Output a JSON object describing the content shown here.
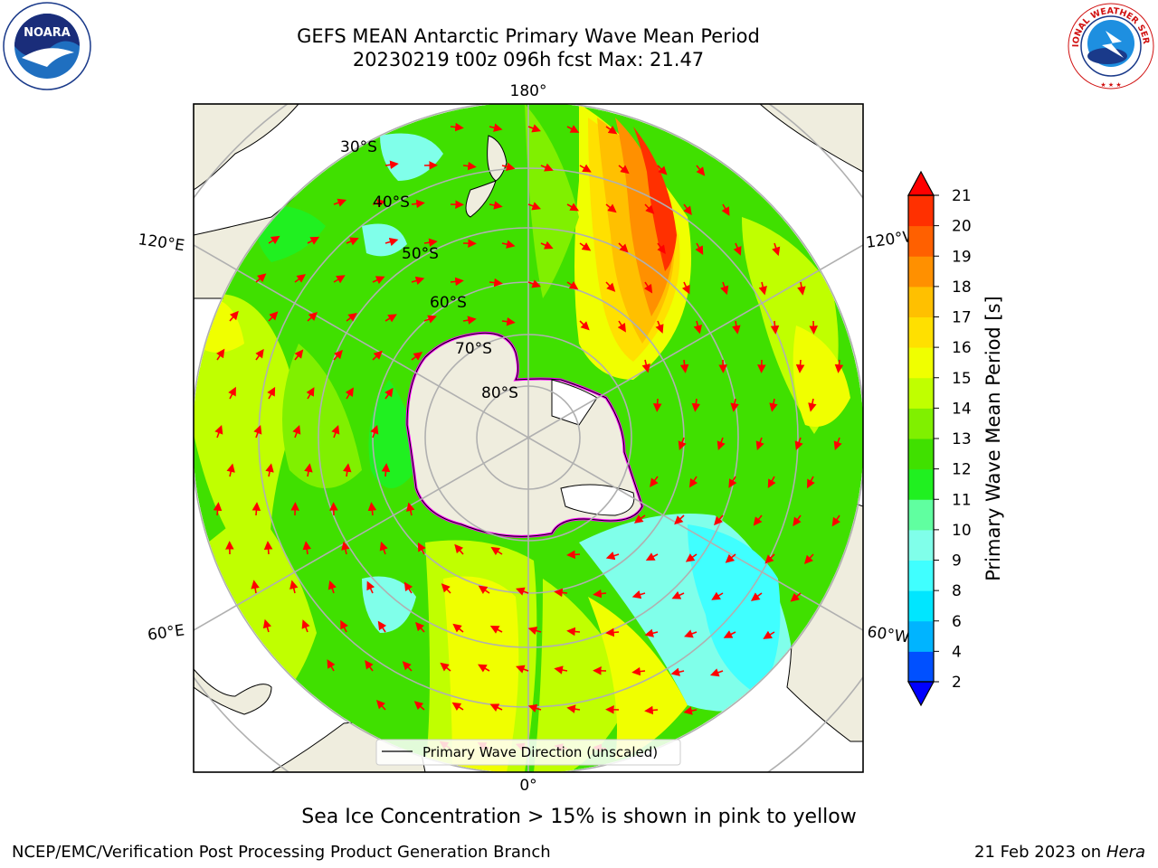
{
  "header": {
    "title_line1": "GEFS MEAN Antarctic Primary Wave Mean Period",
    "title_line2": "20230219 t00z 096h fcst   Max: 21.47"
  },
  "logos": {
    "left": {
      "name": "NOARA",
      "ring_text": "NATIONAL OCEANIC AND ATMOSPHERIC ADMINISTRATION · U.S. DEPARTMENT OF COMMERCE"
    },
    "right": {
      "ring_text": "NATIONAL WEATHER SERVICE"
    }
  },
  "map": {
    "projection": "south-polar-stereographic",
    "lon_labels": {
      "top": "180°",
      "bottom": "0°",
      "left_upper": "120°E",
      "left_lower": "60°E",
      "right_upper": "120°W",
      "right_lower": "60°W"
    },
    "lat_labels": [
      "30°S",
      "40°S",
      "50°S",
      "60°S",
      "70°S",
      "80°S"
    ],
    "legend": "Primary Wave Direction (unscaled)",
    "colors": {
      "land": "#efedde",
      "ice_edge": "#ff00ff",
      "arrow": "#ff0000",
      "grid": "#b0b0b0"
    }
  },
  "colorbar": {
    "label": "Primary Wave Mean Period [s]",
    "ticks": [
      "2",
      "4",
      "6",
      "8",
      "9",
      "10",
      "11",
      "12",
      "13",
      "14",
      "15",
      "16",
      "17",
      "18",
      "19",
      "20",
      "21"
    ],
    "colors": [
      "#0050ff",
      "#00b4ff",
      "#00e6ff",
      "#40ffff",
      "#80ffea",
      "#60ffa0",
      "#20f020",
      "#40e000",
      "#80f000",
      "#c0ff00",
      "#f0ff00",
      "#ffe000",
      "#ffc000",
      "#ff9000",
      "#ff6000",
      "#ff3000"
    ]
  },
  "footer": {
    "caption": "Sea Ice Concentration > 15% is shown in pink to yellow",
    "credit": "NCEP/EMC/Verification Post Processing Product Generation Branch",
    "date": "21 Feb 2023 on",
    "machine": "Hera"
  }
}
